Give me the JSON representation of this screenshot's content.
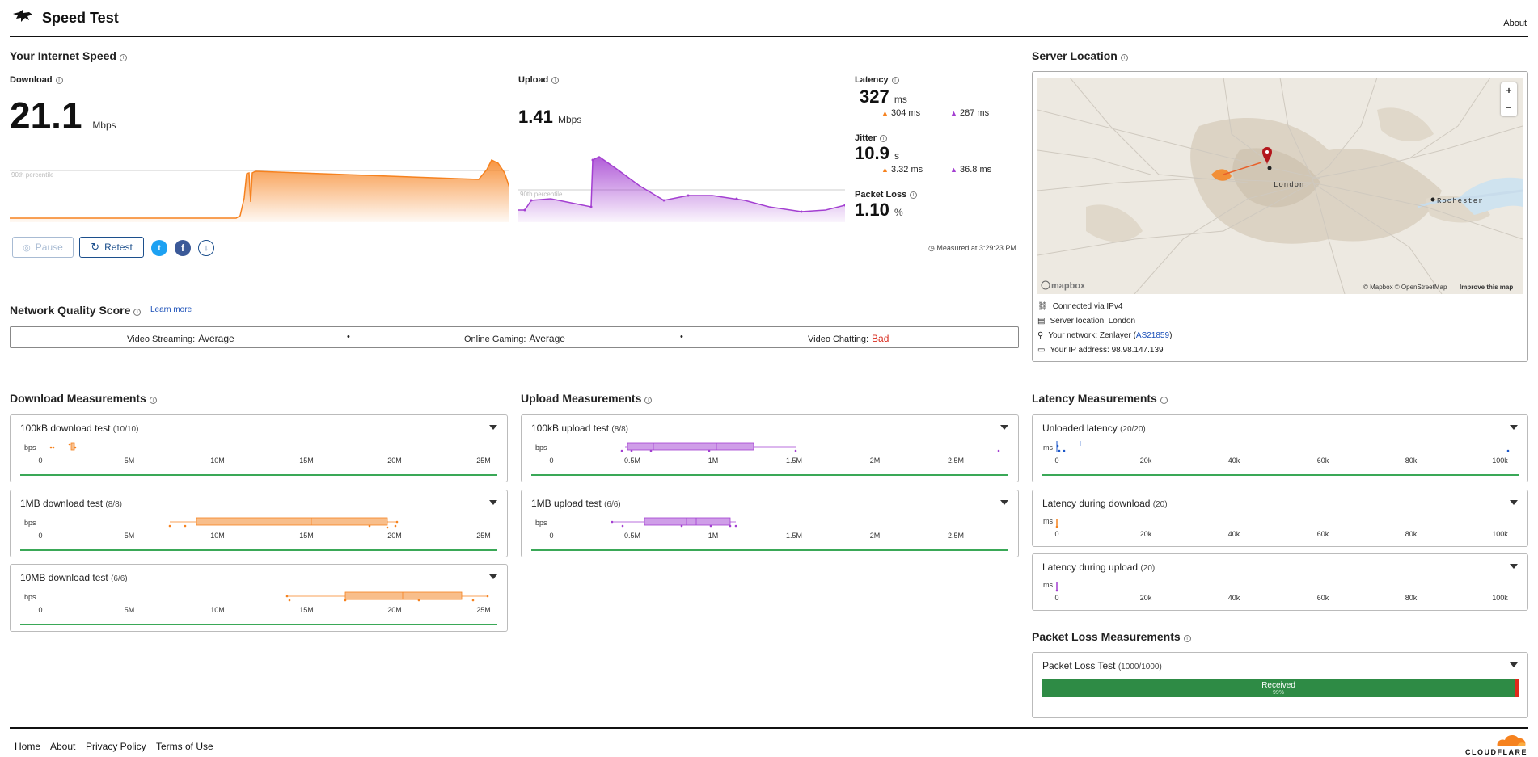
{
  "header": {
    "title": "Speed Test",
    "about": "About"
  },
  "speed": {
    "title": "Your Internet Speed",
    "download": {
      "label": "Download",
      "value": "21.1",
      "unit": "Mbps",
      "percentile_label": "90th percentile"
    },
    "upload": {
      "label": "Upload",
      "value": "1.41",
      "unit": "Mbps",
      "percentile_label": "90th percentile"
    },
    "latency": {
      "label": "Latency",
      "value": "327",
      "unit": "ms",
      "down": "304",
      "down_unit": "ms",
      "up": "287",
      "up_unit": "ms"
    },
    "jitter": {
      "label": "Jitter",
      "value": "10.9",
      "unit": "s",
      "down": "3.32",
      "down_unit": "ms",
      "up": "36.8",
      "up_unit": "ms"
    },
    "packet_loss": {
      "label": "Packet Loss",
      "value": "1.10",
      "unit": "%"
    },
    "buttons": {
      "pause": "Pause",
      "retest": "Retest"
    },
    "measured_at": "Measured at 3:29:23 PM"
  },
  "server": {
    "title": "Server Location",
    "map": {
      "city1": "London",
      "city2": "Rochester",
      "brand": "mapbox",
      "attrib": "© Mapbox © OpenStreetMap",
      "improve": "Improve this map",
      "zoom_in": "+",
      "zoom_out": "−"
    },
    "rows": [
      {
        "icon": "network-icon",
        "text": "Connected via IPv4"
      },
      {
        "icon": "server-icon",
        "text": "Server location: London"
      },
      {
        "icon": "location-pin-icon",
        "prefix": "Your network: Zenlayer (",
        "link": "AS21859",
        "suffix": ")"
      },
      {
        "icon": "id-card-icon",
        "text": "Your IP address: 98.98.147.139"
      }
    ]
  },
  "quality": {
    "title": "Network Quality Score",
    "learn_more": "Learn more",
    "items": [
      {
        "label": "Video Streaming:",
        "value": "Average",
        "color": "#222222"
      },
      {
        "label": "Online Gaming:",
        "value": "Average",
        "color": "#222222"
      },
      {
        "label": "Video Chatting:",
        "value": "Bad",
        "color": "#d92d20"
      }
    ],
    "separator": "•"
  },
  "download_measurements": {
    "title": "Download Measurements",
    "cards": [
      {
        "title": "100kB download test",
        "count": "(10/10)",
        "unit": "bps",
        "ticks": [
          "0",
          "5M",
          "10M",
          "15M",
          "20M",
          "25M"
        ]
      },
      {
        "title": "1MB download test",
        "count": "(8/8)",
        "unit": "bps",
        "ticks": [
          "0",
          "5M",
          "10M",
          "15M",
          "20M",
          "25M"
        ]
      },
      {
        "title": "10MB download test",
        "count": "(6/6)",
        "unit": "bps",
        "ticks": [
          "0",
          "5M",
          "10M",
          "15M",
          "20M",
          "25M"
        ]
      }
    ]
  },
  "upload_measurements": {
    "title": "Upload Measurements",
    "cards": [
      {
        "title": "100kB upload test",
        "count": "(8/8)",
        "unit": "bps",
        "ticks": [
          "0",
          "0.5M",
          "1M",
          "1.5M",
          "2M",
          "2.5M"
        ]
      },
      {
        "title": "1MB upload test",
        "count": "(6/6)",
        "unit": "bps",
        "ticks": [
          "0",
          "0.5M",
          "1M",
          "1.5M",
          "2M",
          "2.5M"
        ]
      }
    ]
  },
  "latency_measurements": {
    "title": "Latency Measurements",
    "cards": [
      {
        "title": "Unloaded latency",
        "count": "(20/20)",
        "unit": "ms",
        "ticks": [
          "0",
          "20k",
          "40k",
          "60k",
          "80k",
          "100k"
        ]
      },
      {
        "title": "Latency during download",
        "count": "(20)",
        "unit": "ms",
        "ticks": [
          "0",
          "20k",
          "40k",
          "60k",
          "80k",
          "100k"
        ]
      },
      {
        "title": "Latency during upload",
        "count": "(20)",
        "unit": "ms",
        "ticks": [
          "0",
          "20k",
          "40k",
          "60k",
          "80k",
          "100k"
        ]
      }
    ]
  },
  "packet_loss_measurements": {
    "title": "Packet Loss Measurements",
    "card": {
      "title": "Packet Loss Test",
      "count": "(1000/1000)",
      "received_label": "Received",
      "received_pct": "99%",
      "received_fraction": 0.99
    }
  },
  "footer": {
    "links": [
      "Home",
      "About",
      "Privacy Policy",
      "Terms of Use"
    ],
    "brand": "CLOUDFLARE"
  },
  "colors": {
    "download": "#f6821f",
    "upload": "#a33fd1",
    "good": "#2e8b45",
    "bad": "#e0291c",
    "link": "#1a4fb8"
  }
}
